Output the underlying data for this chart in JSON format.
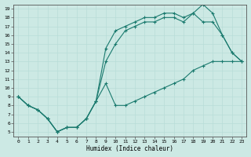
{
  "title": "",
  "xlabel": "Humidex (Indice chaleur)",
  "bg_color": "#cce9e4",
  "line_color": "#1a7a6e",
  "grid_color": "#b8ddd8",
  "xlim": [
    -0.5,
    23.5
  ],
  "ylim": [
    4.5,
    19.5
  ],
  "xticks": [
    0,
    1,
    2,
    3,
    4,
    5,
    6,
    7,
    8,
    9,
    10,
    11,
    12,
    13,
    14,
    15,
    16,
    17,
    18,
    19,
    20,
    21,
    22,
    23
  ],
  "yticks": [
    5,
    6,
    7,
    8,
    9,
    10,
    11,
    12,
    13,
    14,
    15,
    16,
    17,
    18,
    19
  ],
  "line1_x": [
    0,
    1,
    2,
    3,
    4,
    5,
    6,
    7,
    8,
    9,
    10,
    11,
    12,
    13,
    14,
    15,
    16,
    17,
    18,
    19,
    20,
    21,
    22,
    23
  ],
  "line1_y": [
    9.0,
    8.0,
    7.5,
    6.5,
    5.0,
    5.5,
    5.5,
    6.5,
    8.5,
    10.5,
    8.0,
    8.0,
    8.5,
    9.0,
    9.5,
    10.0,
    10.5,
    11.0,
    12.0,
    12.5,
    13.0,
    13.0,
    13.0,
    13.0
  ],
  "line2_x": [
    0,
    1,
    2,
    3,
    4,
    5,
    6,
    7,
    8,
    9,
    10,
    11,
    12,
    13,
    14,
    15,
    16,
    17,
    18,
    19,
    20,
    21,
    22,
    23
  ],
  "line2_y": [
    9.0,
    8.0,
    7.5,
    6.5,
    5.0,
    5.5,
    5.5,
    6.5,
    8.5,
    13.0,
    15.0,
    16.5,
    17.0,
    17.5,
    17.5,
    18.0,
    18.0,
    17.5,
    18.5,
    17.5,
    17.5,
    16.0,
    14.0,
    13.0
  ],
  "line3_x": [
    0,
    1,
    2,
    3,
    4,
    5,
    6,
    7,
    8,
    9,
    10,
    11,
    12,
    13,
    14,
    15,
    16,
    17,
    18,
    19,
    20,
    21,
    22,
    23
  ],
  "line3_y": [
    9.0,
    8.0,
    7.5,
    6.5,
    5.0,
    5.5,
    5.5,
    6.5,
    8.5,
    14.5,
    16.5,
    17.0,
    17.5,
    18.0,
    18.0,
    18.5,
    18.5,
    18.0,
    18.5,
    19.5,
    18.5,
    16.0,
    14.0,
    13.0
  ]
}
